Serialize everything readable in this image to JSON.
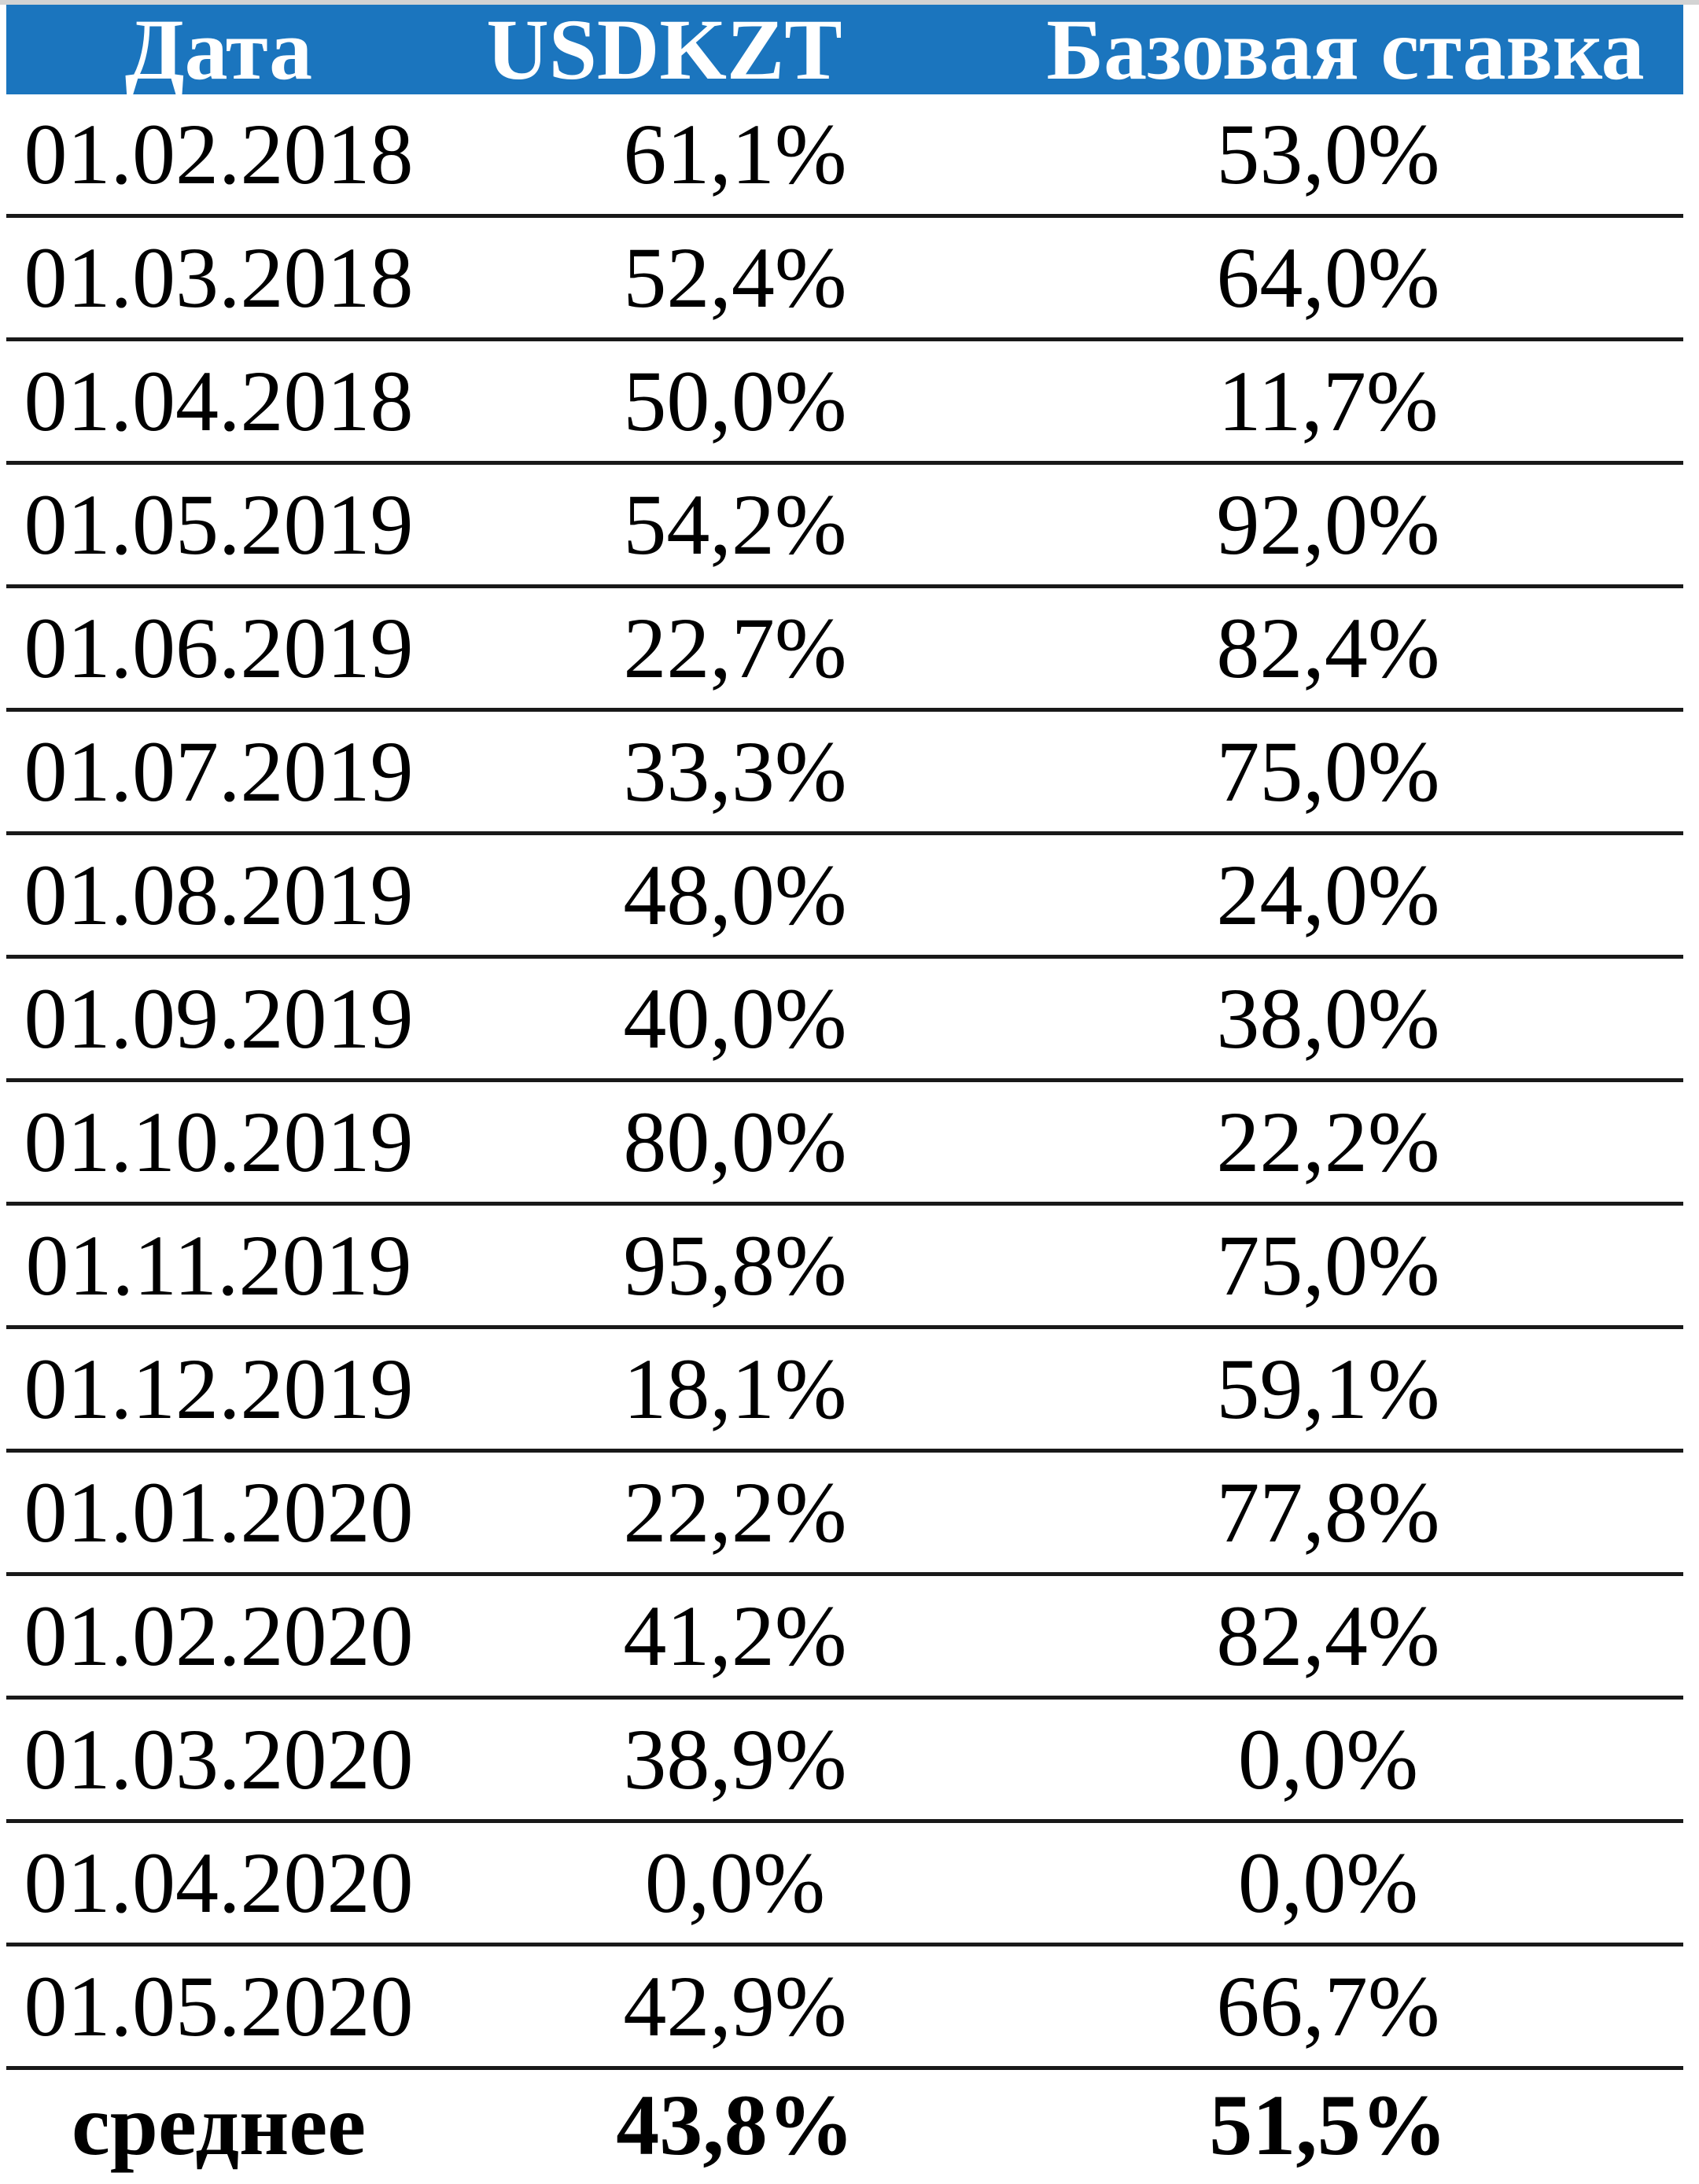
{
  "colors": {
    "header_bg": "#1b75be",
    "header_text": "#ffffff",
    "body_text": "#000000",
    "separator": "#191919",
    "top_strip": "#d3d3d3"
  },
  "table": {
    "columns": [
      "Дата",
      "USDKZT",
      "Базовая ставка"
    ],
    "rows": [
      {
        "date": "01.02.2018",
        "usdkzt": "61,1%",
        "base_rate": "53,0%"
      },
      {
        "date": "01.03.2018",
        "usdkzt": "52,4%",
        "base_rate": "64,0%"
      },
      {
        "date": "01.04.2018",
        "usdkzt": "50,0%",
        "base_rate": "11,7%"
      },
      {
        "date": "01.05.2019",
        "usdkzt": "54,2%",
        "base_rate": "92,0%"
      },
      {
        "date": "01.06.2019",
        "usdkzt": "22,7%",
        "base_rate": "82,4%"
      },
      {
        "date": "01.07.2019",
        "usdkzt": "33,3%",
        "base_rate": "75,0%"
      },
      {
        "date": "01.08.2019",
        "usdkzt": "48,0%",
        "base_rate": "24,0%"
      },
      {
        "date": "01.09.2019",
        "usdkzt": "40,0%",
        "base_rate": "38,0%"
      },
      {
        "date": "01.10.2019",
        "usdkzt": "80,0%",
        "base_rate": "22,2%"
      },
      {
        "date": "01.11.2019",
        "usdkzt": "95,8%",
        "base_rate": "75,0%"
      },
      {
        "date": "01.12.2019",
        "usdkzt": "18,1%",
        "base_rate": "59,1%"
      },
      {
        "date": "01.01.2020",
        "usdkzt": "22,2%",
        "base_rate": "77,8%"
      },
      {
        "date": "01.02.2020",
        "usdkzt": "41,2%",
        "base_rate": "82,4%"
      },
      {
        "date": "01.03.2020",
        "usdkzt": "38,9%",
        "base_rate": "0,0%"
      },
      {
        "date": "01.04.2020",
        "usdkzt": "0,0%",
        "base_rate": "0,0%"
      },
      {
        "date": "01.05.2020",
        "usdkzt": "42,9%",
        "base_rate": "66,7%"
      }
    ],
    "footer": {
      "label": "среднее",
      "usdkzt": "43,8%",
      "base_rate": "51,5%"
    }
  },
  "chart_data": {
    "type": "table",
    "title": "",
    "columns": [
      "Дата",
      "USDKZT",
      "Базовая ставка"
    ],
    "categories": [
      "01.02.2018",
      "01.03.2018",
      "01.04.2018",
      "01.05.2019",
      "01.06.2019",
      "01.07.2019",
      "01.08.2019",
      "01.09.2019",
      "01.10.2019",
      "01.11.2019",
      "01.12.2019",
      "01.01.2020",
      "01.02.2020",
      "01.03.2020",
      "01.04.2020",
      "01.05.2020"
    ],
    "series": [
      {
        "name": "USDKZT",
        "values": [
          61.1,
          52.4,
          50.0,
          54.2,
          22.7,
          33.3,
          48.0,
          40.0,
          80.0,
          95.8,
          18.1,
          22.2,
          41.2,
          38.9,
          0.0,
          42.9
        ],
        "unit": "%"
      },
      {
        "name": "Базовая ставка",
        "values": [
          53.0,
          64.0,
          11.7,
          92.0,
          82.4,
          75.0,
          24.0,
          38.0,
          22.2,
          75.0,
          59.1,
          77.8,
          82.4,
          0.0,
          0.0,
          66.7
        ],
        "unit": "%"
      }
    ],
    "summary_row": {
      "label": "среднее",
      "USDKZT": 43.8,
      "Базовая ставка": 51.5,
      "unit": "%"
    }
  }
}
